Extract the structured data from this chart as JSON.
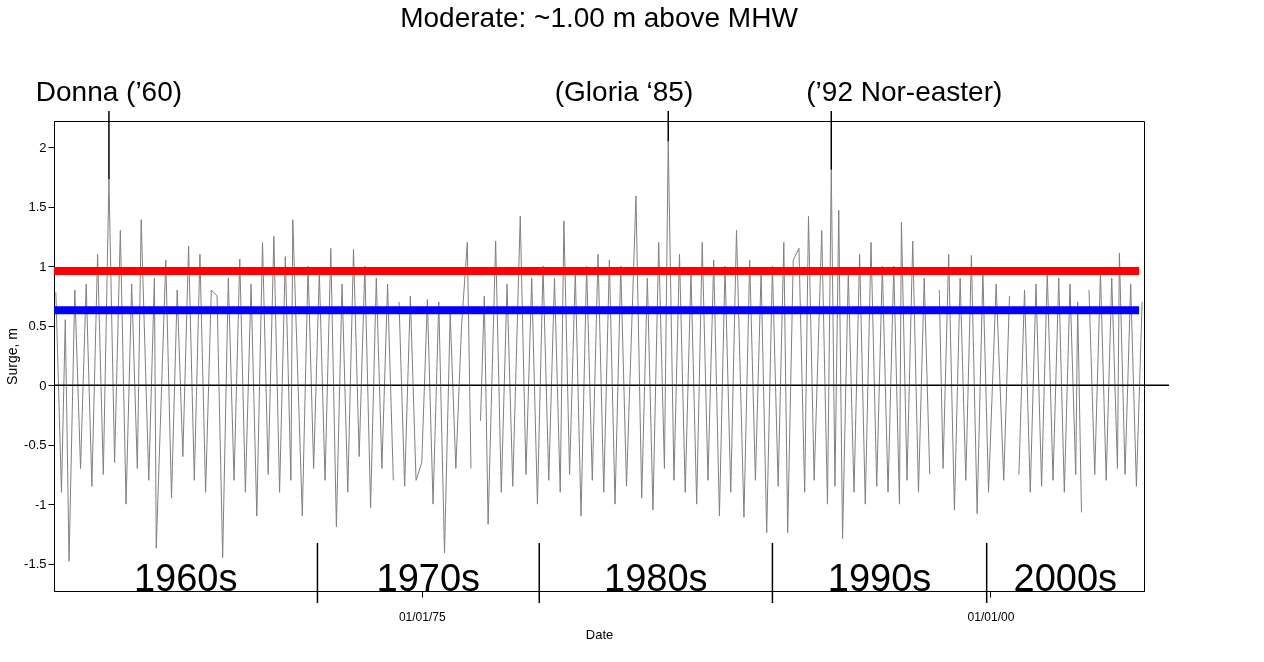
{
  "chart_data": {
    "type": "line",
    "title": "Moderate: ~1.00 m above MHW",
    "xlabel": "Date",
    "ylabel": "Surge, m",
    "xlim": [
      "1958-11",
      "2006-10"
    ],
    "xticks": [
      {
        "value": "1975-01-01",
        "label": "01/01/75"
      },
      {
        "value": "2000-01-01",
        "label": "01/01/00"
      }
    ],
    "ylim": [
      -1.73,
      2.22
    ],
    "yticks": [
      -1.5,
      -1,
      -0.5,
      0,
      0.5,
      1,
      1.5,
      2
    ],
    "grid": false,
    "marker": "none",
    "line_style": "solid",
    "ref_lines": [
      {
        "axis": "y",
        "value": 0.96,
        "color": "#ff0000"
      },
      {
        "axis": "y",
        "value": 0.63,
        "color": "#0000ff"
      },
      {
        "axis": "y",
        "value": 0,
        "color": "#000000"
      },
      {
        "axis": "x",
        "value": "1970-06",
        "color": "#000000"
      },
      {
        "axis": "x",
        "value": "1980-03",
        "color": "#000000"
      },
      {
        "axis": "x",
        "value": "1990-06",
        "color": "#000000"
      },
      {
        "axis": "x",
        "value": "1999-11",
        "color": "#000000"
      }
    ],
    "annotations": [
      {
        "text": "Donna (’60)",
        "x": "1961-04",
        "y": 1.73
      },
      {
        "text": "(Gloria ‘85)",
        "x": "1985-11",
        "y": 2.05
      },
      {
        "text": "(’92 Nor-easter)",
        "x": "1993-01",
        "y": 1.81
      },
      "1960s",
      "1970s",
      "1980s",
      "1990s",
      "2000s"
    ],
    "series": [
      {
        "color": "#808080",
        "x": [
          "1958-12",
          "1959-03",
          "1959-05",
          "1959-07",
          "1959-10",
          "1960-01",
          "1960-04",
          "1960-07",
          "1960-10",
          "1961-01",
          "1961-04",
          "1961-07",
          "1961-10",
          "1962-01",
          "1962-04",
          "1962-07",
          "1962-09",
          "1963-01",
          "1963-04",
          "1963-05",
          "1963-10",
          "1964-01",
          "1964-04",
          "1964-07",
          "1964-10",
          "1965-01",
          "1965-04",
          "1965-07",
          "1965-10",
          "1966-01",
          "1966-04",
          "1966-07",
          "1966-10",
          "1967-01",
          "1967-04",
          "1967-07",
          "1967-10",
          "1968-01",
          "1968-04",
          "1968-07",
          "1968-10",
          "1969-01",
          "1969-04",
          "1969-05",
          "1969-10",
          "1970-01",
          "1970-04",
          "1970-07",
          "1970-10",
          "1971-01",
          "1971-04",
          "1971-07",
          "1971-10",
          "1972-01",
          "1972-04",
          "1972-07",
          "1972-10",
          "1973-01",
          "1973-04",
          "1973-07",
          "1973-10",
          "1973-11",
          "1974-01",
          "1974-04",
          "1974-07",
          "1974-10",
          "1975-01",
          "1975-04",
          "1975-07",
          "1975-10",
          "1976-01",
          "1976-04",
          "1976-07",
          "1976-10",
          "1977-01",
          "1977-03",
          "1977-05",
          "1977-08",
          "1977-10",
          "1977-12",
          "1978-04",
          "1978-07",
          "1978-10",
          "1979-01",
          "1979-05",
          "1979-08",
          "1979-11",
          "1980-02",
          "1980-05",
          "1980-08",
          "1980-11",
          "1981-02",
          "1981-04",
          "1981-07",
          "1981-10",
          "1982-01",
          "1982-04",
          "1982-07",
          "1982-10",
          "1983-01",
          "1983-04",
          "1983-07",
          "1983-10",
          "1984-01",
          "1984-06",
          "1984-09",
          "1984-12",
          "1985-03",
          "1985-06",
          "1985-09",
          "1985-11",
          "1986-02",
          "1986-05",
          "1986-08",
          "1986-11",
          "1987-02",
          "1987-05",
          "1987-08",
          "1987-11",
          "1988-02",
          "1988-05",
          "1988-08",
          "1988-11",
          "1989-03",
          "1989-06",
          "1989-09",
          "1989-12",
          "1990-03",
          "1990-06",
          "1990-09",
          "1990-12",
          "1991-02",
          "1991-05",
          "1991-08",
          "1991-11",
          "1992-01",
          "1992-04",
          "1992-08",
          "1992-11",
          "1993-01",
          "1993-03",
          "1993-05",
          "1993-07",
          "1993-10",
          "1994-01",
          "1994-04",
          "1994-07",
          "1994-10",
          "1995-01",
          "1995-04",
          "1995-07",
          "1995-10",
          "1996-01",
          "1996-02",
          "1996-05",
          "1996-08",
          "1996-11",
          "1997-02",
          "1997-05",
          "1997-07",
          "1997-10",
          "1997-12",
          "1998-03",
          "1998-06",
          "1998-09",
          "1998-12",
          "1999-03",
          "1999-06",
          "1999-09",
          "1999-12",
          "2000-04",
          "2000-08",
          "2000-11",
          "2001-01",
          "2001-04",
          "2001-07",
          "2001-10",
          "2002-01",
          "2002-04",
          "2002-07",
          "2002-10",
          "2003-01",
          "2003-04",
          "2003-07",
          "2003-10",
          "2003-11",
          "2004-01",
          "2004-02",
          "2004-05",
          "2004-08",
          "2004-11",
          "2005-02",
          "2005-05",
          "2005-08",
          "2005-09",
          "2005-12",
          "2006-03",
          "2006-06",
          "2006-09"
        ],
        "values": [
          0.78,
          -0.9,
          0.55,
          -1.48,
          0.8,
          -0.7,
          0.85,
          -0.85,
          1.1,
          -0.75,
          1.73,
          -0.65,
          1.3,
          -1.0,
          0.85,
          -0.7,
          1.39,
          -0.8,
          0.9,
          -1.37,
          1.05,
          -0.95,
          0.8,
          -0.6,
          1.17,
          -0.8,
          1.1,
          -0.9,
          0.8,
          0.75,
          -1.45,
          0.9,
          -0.8,
          1.06,
          -0.9,
          0.85,
          -1.1,
          1.2,
          -0.75,
          1.25,
          -0.9,
          1.08,
          -0.8,
          1.39,
          -1.1,
          1.0,
          -0.7,
          0.95,
          -0.8,
          1.15,
          -1.19,
          0.85,
          -0.9,
          1.14,
          -0.6,
          1.0,
          -1.03,
          0.9,
          -0.7,
          0.85,
          -0.8,
          null,
          0.7,
          -0.85,
          0.75,
          -0.8,
          -0.65,
          0.72,
          -1.0,
          0.7,
          -1.41,
          0.6,
          -0.7,
          0.5,
          1.2,
          -0.7,
          null,
          -0.3,
          0.75,
          -1.17,
          1.21,
          -0.9,
          0.85,
          -0.85,
          1.42,
          -0.75,
          0.9,
          -1.0,
          1.0,
          -0.8,
          0.9,
          -0.9,
          1.38,
          -0.75,
          0.95,
          -1.1,
          1.0,
          -0.8,
          1.1,
          -0.9,
          1.05,
          -1.0,
          1.0,
          -0.85,
          1.59,
          -0.95,
          0.9,
          -1.05,
          1.2,
          -0.7,
          2.05,
          -0.8,
          1.1,
          -0.9,
          0.95,
          -1.0,
          1.2,
          -0.8,
          1.05,
          -1.1,
          1.0,
          -0.9,
          1.3,
          -1.11,
          1.05,
          -0.8,
          0.95,
          -1.24,
          1.0,
          -0.85,
          1.2,
          -1.24,
          1.05,
          1.15,
          -0.9,
          1.42,
          -0.8,
          1.3,
          -1.0,
          1.81,
          -0.85,
          1.47,
          -1.29,
          0.95,
          -0.9,
          1.1,
          -1.0,
          1.2,
          -0.85,
          1.0,
          -0.9,
          1.0,
          -1.0,
          1.37,
          -0.8,
          1.21,
          -0.9,
          0.9,
          -0.75,
          null,
          0.8,
          -0.7,
          1.1,
          -1.05,
          0.9,
          -0.8,
          1.09,
          -1.08,
          0.95,
          -0.9,
          0.85,
          -0.8,
          0.75,
          null,
          -0.75,
          0.8,
          -0.9,
          0.85,
          -0.85,
          0.95,
          -0.8,
          0.9,
          -0.9,
          0.85,
          -0.75,
          0.7,
          -1.07,
          null,
          0.8,
          -0.75,
          0.95,
          -0.8,
          0.9,
          -0.7,
          1.11,
          -0.75,
          0.85,
          -0.85,
          0.7
        ]
      }
    ]
  }
}
